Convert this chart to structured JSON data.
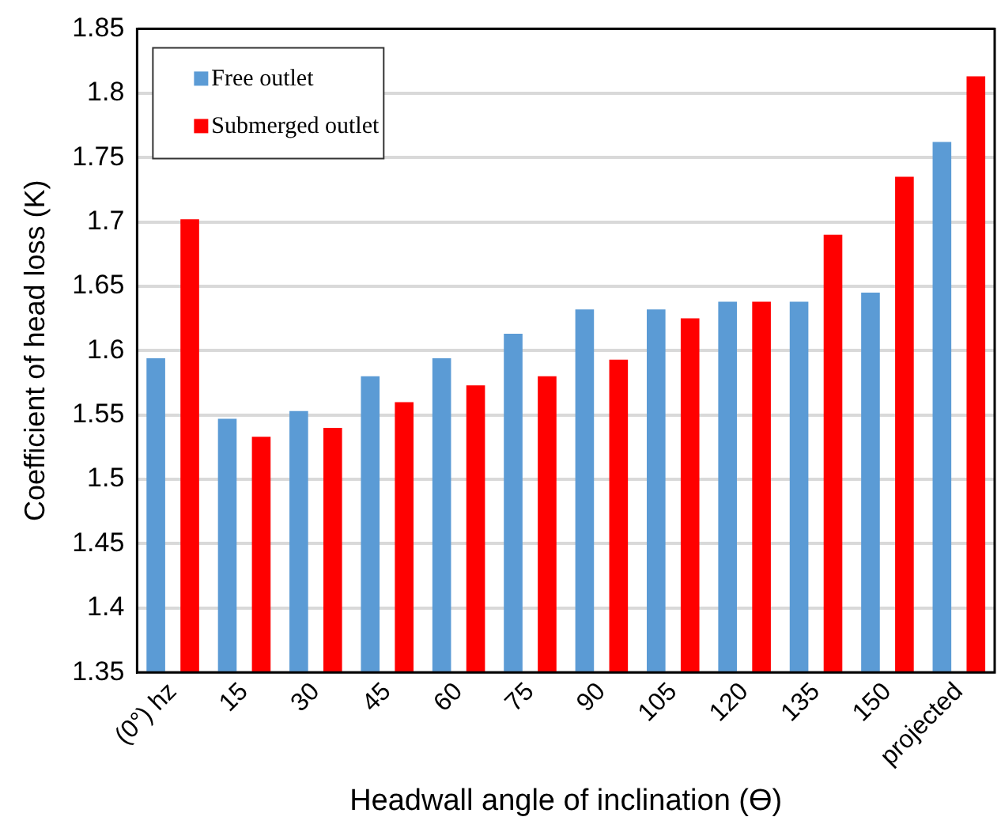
{
  "chart_data": {
    "type": "bar",
    "xlabel": "Headwall angle of inclination (ϴ)",
    "ylabel": "Coefficient of head loss (K)",
    "categories": [
      "(0°) hz",
      "15",
      "30",
      "45",
      "60",
      "75",
      "90",
      "105",
      "120",
      "135",
      "150",
      "projected"
    ],
    "series": [
      {
        "name": "Free outlet",
        "color": "#5b9bd5",
        "values": [
          1.594,
          1.547,
          1.553,
          1.58,
          1.594,
          1.613,
          1.632,
          1.632,
          1.638,
          1.638,
          1.645,
          1.762
        ]
      },
      {
        "name": "Submerged outlet",
        "color": "#ff0000",
        "values": [
          1.702,
          1.533,
          1.54,
          1.56,
          1.573,
          1.58,
          1.593,
          1.625,
          1.638,
          1.69,
          1.735,
          1.813
        ]
      }
    ],
    "ylim": [
      1.35,
      1.85
    ],
    "yticks": [
      1.35,
      1.4,
      1.45,
      1.5,
      1.55,
      1.6,
      1.65,
      1.7,
      1.75,
      1.8,
      1.85
    ],
    "grid": "y",
    "legend": "top left"
  }
}
